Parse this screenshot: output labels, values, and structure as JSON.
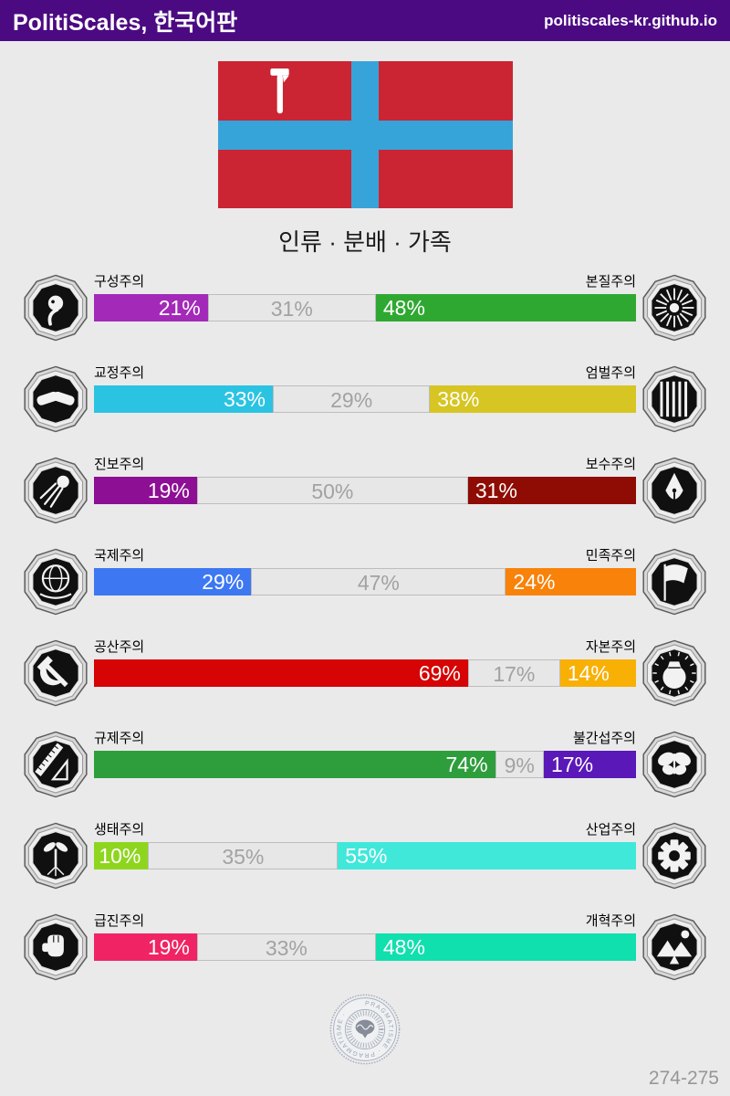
{
  "header": {
    "title": "PolitiScales, 한국어판",
    "site": "politiscales-kr.github.io",
    "bg_color": "#4b0a82"
  },
  "flag": {
    "red": "#cb2433",
    "blue": "#37a4d9",
    "hammer_color": "#ffffff"
  },
  "subtitle": "인류 · 분배 · 가족",
  "bar_style": {
    "neutral_fill": "#e7e7e7",
    "neutral_border": "#bdbdbd",
    "neutral_text": "#a2a2a2",
    "value_text": "#ffffff"
  },
  "axes": [
    {
      "left_label": "구성주의",
      "right_label": "본질주의",
      "left_pct": 21,
      "neutral_pct": 31,
      "right_pct": 48,
      "left_color": "#a32ab8",
      "right_color": "#2fa831",
      "left_icon": "embryo-icon",
      "right_icon": "flower-icon"
    },
    {
      "left_label": "교정주의",
      "right_label": "엄벌주의",
      "left_pct": 33,
      "neutral_pct": 29,
      "right_pct": 38,
      "left_color": "#2bc3e2",
      "right_color": "#d6c522",
      "left_icon": "handshake-icon",
      "right_icon": "prison-bars-icon"
    },
    {
      "left_label": "진보주의",
      "right_label": "보수주의",
      "left_pct": 19,
      "neutral_pct": 50,
      "right_pct": 31,
      "left_color": "#8d0f94",
      "right_color": "#8e0c04",
      "left_icon": "comet-icon",
      "right_icon": "pen-nib-icon"
    },
    {
      "left_label": "국제주의",
      "right_label": "민족주의",
      "left_pct": 29,
      "neutral_pct": 47,
      "right_pct": 24,
      "left_color": "#3d78f2",
      "right_color": "#f8820a",
      "left_icon": "globe-icon",
      "right_icon": "flag-icon"
    },
    {
      "left_label": "공산주의",
      "right_label": "자본주의",
      "left_pct": 69,
      "neutral_pct": 17,
      "right_pct": 14,
      "left_color": "#d60404",
      "right_color": "#f9b005",
      "left_icon": "hammer-sickle-icon",
      "right_icon": "money-bag-icon"
    },
    {
      "left_label": "규제주의",
      "right_label": "불간섭주의",
      "left_pct": 74,
      "neutral_pct": 9,
      "right_pct": 17,
      "left_color": "#2e9e3c",
      "right_color": "#5a18b8",
      "left_icon": "measuring-tools-icon",
      "right_icon": "butterfly-icon"
    },
    {
      "left_label": "생태주의",
      "right_label": "산업주의",
      "left_pct": 10,
      "neutral_pct": 35,
      "right_pct": 55,
      "left_color": "#8ed61e",
      "right_color": "#40e8da",
      "left_icon": "sprout-icon",
      "right_icon": "gear-icon"
    },
    {
      "left_label": "급진주의",
      "right_label": "개혁주의",
      "left_pct": 19,
      "neutral_pct": 33,
      "right_pct": 48,
      "left_color": "#f02465",
      "right_color": "#10dfae",
      "left_icon": "fist-icon",
      "right_icon": "landscape-icon"
    }
  ],
  "seal": {
    "name": "pragmatism-brain-seal",
    "text": "PRAGMATISME · PRAGMATISME ·"
  },
  "page_number": "274-275",
  "chart_data": {
    "type": "bar",
    "title": "인류 · 분배 · 가족",
    "categories": [
      "구성주의/본질주의",
      "교정주의/엄벌주의",
      "진보주의/보수주의",
      "국제주의/민족주의",
      "공산주의/자본주의",
      "규제주의/불간섭주의",
      "생태주의/산업주의",
      "급진주의/개혁주의"
    ],
    "series": [
      {
        "name": "left",
        "values": [
          21,
          33,
          19,
          29,
          69,
          74,
          10,
          19
        ]
      },
      {
        "name": "neutral",
        "values": [
          31,
          29,
          50,
          47,
          17,
          9,
          35,
          33
        ]
      },
      {
        "name": "right",
        "values": [
          48,
          38,
          31,
          24,
          14,
          17,
          55,
          48
        ]
      }
    ],
    "xlim": [
      0,
      100
    ],
    "legend_position": "none",
    "grid": false
  }
}
